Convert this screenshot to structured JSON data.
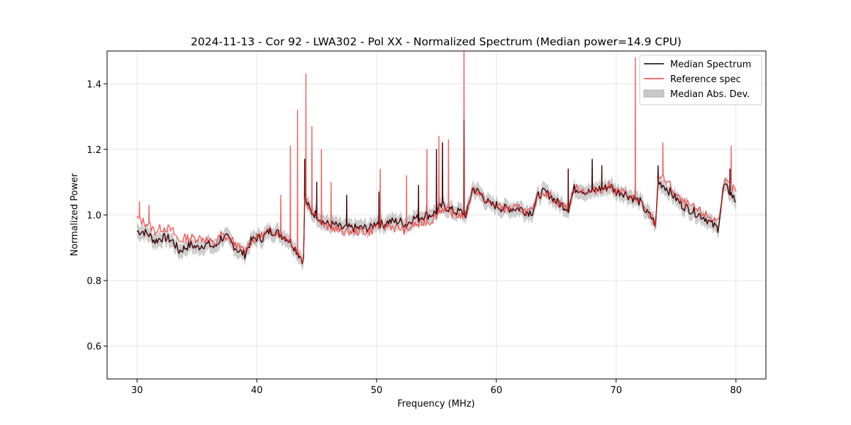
{
  "chart_data": {
    "type": "line",
    "title": "2024-11-13 - Cor 92 - LWA302 - Pol XX - Normalized Spectrum (Median power=14.9 CPU)",
    "xlabel": "Frequency (MHz)",
    "ylabel": "Normalized Power",
    "xlim": [
      27.5,
      82.5
    ],
    "ylim": [
      0.5,
      1.5
    ],
    "xticks": [
      30,
      40,
      50,
      60,
      70,
      80
    ],
    "yticks": [
      0.6,
      0.8,
      1.0,
      1.2,
      1.4
    ],
    "xtick_labels": [
      "30",
      "40",
      "50",
      "60",
      "70",
      "80"
    ],
    "ytick_labels": [
      "0.6",
      "0.8",
      "1.0",
      "1.2",
      "1.4"
    ],
    "grid": true,
    "legend_position": "top-right",
    "legend": [
      "Median Spectrum",
      "Reference spec",
      "Median Abs. Dev."
    ],
    "colors": {
      "median": "#000000",
      "reference": "#ee4444",
      "overlap": "#8b0000",
      "mad_band": "#c8c8c8",
      "grid": "#e4e4e4"
    },
    "series": [
      {
        "name": "Median Spectrum",
        "x": [
          30.0,
          30.5,
          31.0,
          31.5,
          32.0,
          32.5,
          33.0,
          33.5,
          34.0,
          34.5,
          35.0,
          35.5,
          36.0,
          36.5,
          37.0,
          37.5,
          38.0,
          38.5,
          39.0,
          39.5,
          40.0,
          40.5,
          41.0,
          41.5,
          42.0,
          42.5,
          43.0,
          43.5,
          43.9,
          44.0,
          44.5,
          45.0,
          45.5,
          46.0,
          46.5,
          47.0,
          47.5,
          48.0,
          48.5,
          49.0,
          49.5,
          50.0,
          50.5,
          51.0,
          51.5,
          52.0,
          52.5,
          53.0,
          53.5,
          54.0,
          54.5,
          55.0,
          55.5,
          56.0,
          56.5,
          57.0,
          57.5,
          58.0,
          58.5,
          59.0,
          59.5,
          60.0,
          60.5,
          61.0,
          61.5,
          62.0,
          62.5,
          63.0,
          63.5,
          64.0,
          64.5,
          65.0,
          65.5,
          66.0,
          66.5,
          67.0,
          67.5,
          68.0,
          68.5,
          69.0,
          69.5,
          70.0,
          70.5,
          71.0,
          71.5,
          72.0,
          72.5,
          73.0,
          73.3,
          73.5,
          74.0,
          74.5,
          75.0,
          75.5,
          76.0,
          76.5,
          77.0,
          77.5,
          78.0,
          78.5,
          79.0,
          79.5,
          80.0
        ],
        "y": [
          0.95,
          0.95,
          0.94,
          0.92,
          0.93,
          0.93,
          0.92,
          0.89,
          0.9,
          0.91,
          0.9,
          0.91,
          0.91,
          0.9,
          0.93,
          0.93,
          0.91,
          0.89,
          0.88,
          0.92,
          0.93,
          0.93,
          0.95,
          0.95,
          0.94,
          0.93,
          0.91,
          0.88,
          0.86,
          1.05,
          1.01,
          1.0,
          0.98,
          0.97,
          0.97,
          0.96,
          0.96,
          0.96,
          0.96,
          0.96,
          0.96,
          0.98,
          0.97,
          0.98,
          0.98,
          0.98,
          0.97,
          0.99,
          0.99,
          1.0,
          1.0,
          1.01,
          1.03,
          1.02,
          1.01,
          1.01,
          1.0,
          1.08,
          1.07,
          1.05,
          1.03,
          1.03,
          1.02,
          1.02,
          1.02,
          1.02,
          1.01,
          1.01,
          1.06,
          1.07,
          1.06,
          1.04,
          1.03,
          1.02,
          1.08,
          1.08,
          1.07,
          1.07,
          1.08,
          1.08,
          1.09,
          1.07,
          1.07,
          1.06,
          1.05,
          1.04,
          1.01,
          0.99,
          0.97,
          1.1,
          1.09,
          1.07,
          1.05,
          1.03,
          1.02,
          1.01,
          1.0,
          0.99,
          0.97,
          0.96,
          1.09,
          1.07,
          1.04
        ]
      },
      {
        "name": "Reference spec",
        "x": [
          30.0,
          30.5,
          31.0,
          31.5,
          32.0,
          32.5,
          33.0,
          33.5,
          34.0,
          34.5,
          35.0,
          35.5,
          36.0,
          36.5,
          37.0,
          37.5,
          38.0,
          38.5,
          39.0,
          39.5,
          40.0,
          40.5,
          41.0,
          41.5,
          42.0,
          42.5,
          43.0,
          43.5,
          43.9,
          44.0,
          44.5,
          45.0,
          45.5,
          46.0,
          46.5,
          47.0,
          47.5,
          48.0,
          48.5,
          49.0,
          49.5,
          50.0,
          50.5,
          51.0,
          51.5,
          52.0,
          52.5,
          53.0,
          53.5,
          54.0,
          54.5,
          55.0,
          55.5,
          56.0,
          56.5,
          57.0,
          57.5,
          58.0,
          58.5,
          59.0,
          59.5,
          60.0,
          60.5,
          61.0,
          61.5,
          62.0,
          62.5,
          63.0,
          63.5,
          64.0,
          64.5,
          65.0,
          65.5,
          66.0,
          66.5,
          67.0,
          67.5,
          68.0,
          68.5,
          69.0,
          69.5,
          70.0,
          70.5,
          71.0,
          71.5,
          72.0,
          72.5,
          73.0,
          73.3,
          73.5,
          74.0,
          74.5,
          75.0,
          75.5,
          76.0,
          76.5,
          77.0,
          77.5,
          78.0,
          78.5,
          79.0,
          79.5,
          80.0
        ],
        "y": [
          0.99,
          0.98,
          0.97,
          0.95,
          0.96,
          0.96,
          0.95,
          0.92,
          0.93,
          0.93,
          0.93,
          0.93,
          0.92,
          0.91,
          0.94,
          0.93,
          0.92,
          0.9,
          0.89,
          0.92,
          0.93,
          0.94,
          0.95,
          0.95,
          0.94,
          0.93,
          0.91,
          0.88,
          0.86,
          1.05,
          1.02,
          1.0,
          0.97,
          0.96,
          0.96,
          0.95,
          0.95,
          0.95,
          0.95,
          0.95,
          0.95,
          0.97,
          0.96,
          0.97,
          0.96,
          0.96,
          0.95,
          0.97,
          0.97,
          0.98,
          0.98,
          1.0,
          1.02,
          1.01,
          1.0,
          1.0,
          1.0,
          1.08,
          1.07,
          1.05,
          1.03,
          1.03,
          1.02,
          1.02,
          1.02,
          1.02,
          1.01,
          1.01,
          1.06,
          1.07,
          1.06,
          1.04,
          1.03,
          1.02,
          1.08,
          1.08,
          1.07,
          1.07,
          1.08,
          1.08,
          1.09,
          1.07,
          1.07,
          1.06,
          1.05,
          1.04,
          1.01,
          0.99,
          0.97,
          1.12,
          1.11,
          1.09,
          1.06,
          1.04,
          1.03,
          1.02,
          1.01,
          1.0,
          0.99,
          0.98,
          1.1,
          1.09,
          1.07
        ]
      }
    ],
    "median_spikes": [
      [
        44.0,
        1.17
      ],
      [
        45.0,
        1.1
      ],
      [
        47.5,
        1.06
      ],
      [
        50.2,
        1.07
      ],
      [
        53.5,
        1.09
      ],
      [
        55.0,
        1.2
      ],
      [
        55.5,
        1.22
      ],
      [
        57.3,
        1.29
      ],
      [
        66.0,
        1.14
      ],
      [
        68.0,
        1.17
      ],
      [
        68.8,
        1.15
      ],
      [
        73.5,
        1.15
      ],
      [
        79.5,
        1.14
      ]
    ],
    "reference_spikes": [
      [
        30.2,
        1.04
      ],
      [
        31.0,
        1.03
      ],
      [
        42.0,
        1.06
      ],
      [
        42.8,
        1.21
      ],
      [
        43.4,
        1.32
      ],
      [
        44.1,
        1.43
      ],
      [
        44.6,
        1.27
      ],
      [
        45.4,
        1.2
      ],
      [
        46.2,
        1.1
      ],
      [
        50.3,
        1.14
      ],
      [
        52.5,
        1.12
      ],
      [
        54.2,
        1.2
      ],
      [
        55.2,
        1.24
      ],
      [
        56.0,
        1.23
      ],
      [
        57.3,
        1.5
      ],
      [
        71.6,
        1.48
      ],
      [
        73.9,
        1.22
      ],
      [
        79.6,
        1.21
      ]
    ],
    "mad_width": 0.022
  }
}
